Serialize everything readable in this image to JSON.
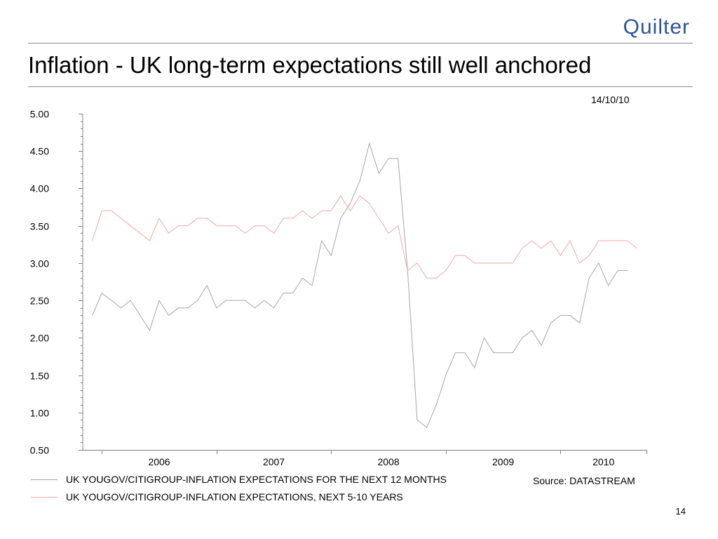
{
  "header": {
    "logo_text": "Quilter",
    "title": "Inflation - UK long-term expectations still well anchored",
    "date": "14/10/10"
  },
  "footer": {
    "source": "Source: DATASTREAM",
    "page_number": "14"
  },
  "colors": {
    "logo": "#2f5496",
    "rule": "#8c8c8c",
    "series_short_term": "#a6a6a6",
    "series_long_term": "#f2a8a8",
    "axis": "#808080"
  },
  "chart_data": {
    "type": "line",
    "title": "",
    "xlabel": "",
    "ylabel": "",
    "ylim": [
      0.5,
      5.0
    ],
    "yticks": [
      "5.00",
      "4.50",
      "4.00",
      "3.50",
      "3.00",
      "2.50",
      "2.00",
      "1.50",
      "1.00",
      "0.50"
    ],
    "ytick_values": [
      5.0,
      4.5,
      4.0,
      3.5,
      3.0,
      2.5,
      2.0,
      1.5,
      1.0,
      0.5
    ],
    "xlim": [
      "2005-11",
      "2010-10"
    ],
    "x_tick_labels": [
      "2006",
      "2007",
      "2008",
      "2009",
      "2010"
    ],
    "x": [
      "2005-12",
      "2006-01",
      "2006-02",
      "2006-03",
      "2006-04",
      "2006-05",
      "2006-06",
      "2006-07",
      "2006-08",
      "2006-09",
      "2006-10",
      "2006-11",
      "2006-12",
      "2007-01",
      "2007-02",
      "2007-03",
      "2007-04",
      "2007-05",
      "2007-06",
      "2007-07",
      "2007-08",
      "2007-09",
      "2007-10",
      "2007-11",
      "2007-12",
      "2008-01",
      "2008-02",
      "2008-03",
      "2008-04",
      "2008-05",
      "2008-06",
      "2008-07",
      "2008-08",
      "2008-09",
      "2008-10",
      "2008-11",
      "2008-12",
      "2009-01",
      "2009-02",
      "2009-03",
      "2009-04",
      "2009-05",
      "2009-06",
      "2009-07",
      "2009-08",
      "2009-09",
      "2009-10",
      "2009-11",
      "2009-12",
      "2010-01",
      "2010-02",
      "2010-03",
      "2010-04",
      "2010-05",
      "2010-06",
      "2010-07",
      "2010-08",
      "2010-09"
    ],
    "series": [
      {
        "name": "UK YOUGOV/CITIGROUP-INFLATION EXPECTATIONS FOR THE NEXT 12 MONTHS",
        "color": "#a6a6a6",
        "values": [
          2.3,
          2.6,
          2.5,
          2.4,
          2.5,
          2.3,
          2.1,
          2.5,
          2.3,
          2.4,
          2.4,
          2.5,
          2.7,
          2.4,
          2.5,
          2.5,
          2.5,
          2.4,
          2.5,
          2.4,
          2.6,
          2.6,
          2.8,
          2.7,
          3.3,
          3.1,
          3.6,
          3.8,
          4.1,
          4.6,
          4.2,
          4.4,
          4.4,
          2.9,
          0.9,
          0.8,
          1.1,
          1.5,
          1.8,
          1.8,
          1.6,
          2.0,
          1.8,
          1.8,
          1.8,
          2.0,
          2.1,
          1.9,
          2.2,
          2.3,
          2.3,
          2.2,
          2.8,
          3.0,
          2.7,
          2.9,
          2.9,
          null
        ]
      },
      {
        "name": "UK YOUGOV/CITIGROUP-INFLATION EXPECTATIONS, NEXT 5-10 YEARS",
        "color": "#f2a8a8",
        "values": [
          3.3,
          3.7,
          3.7,
          3.6,
          3.5,
          3.4,
          3.3,
          3.6,
          3.4,
          3.5,
          3.5,
          3.6,
          3.6,
          3.5,
          3.5,
          3.5,
          3.4,
          3.5,
          3.5,
          3.4,
          3.6,
          3.6,
          3.7,
          3.6,
          3.7,
          3.7,
          3.9,
          3.7,
          3.9,
          3.8,
          3.6,
          3.4,
          3.5,
          2.9,
          3.0,
          2.8,
          2.8,
          2.9,
          3.1,
          3.1,
          3.0,
          3.0,
          3.0,
          3.0,
          3.0,
          3.2,
          3.3,
          3.2,
          3.3,
          3.1,
          3.3,
          3.0,
          3.1,
          3.3,
          3.3,
          3.3,
          3.3,
          3.2
        ]
      }
    ],
    "grid": false,
    "legend_position": "bottom-left"
  }
}
